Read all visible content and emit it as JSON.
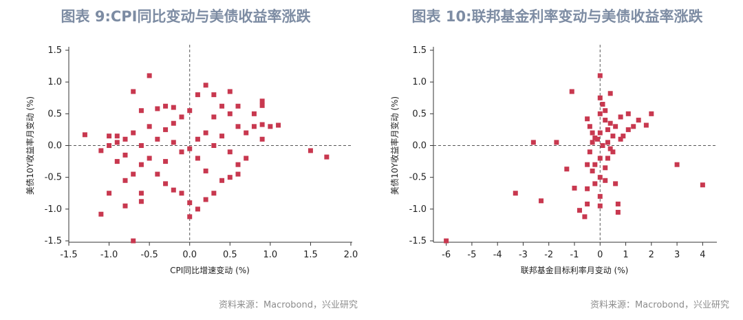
{
  "charts": [
    {
      "title": "图表 9:CPI同比变动与美债收益率涨跌",
      "source": "资料来源：Macrobond，兴业研究",
      "chart_data": {
        "type": "scatter",
        "title": "图表 9:CPI同比变动与美债收益率涨跌",
        "xlabel": "CPI同比增速变动 (%)",
        "ylabel": "美债10Y收益率月变动 (%)",
        "xlim": [
          -1.5,
          2.0
        ],
        "ylim": [
          -1.5,
          1.5
        ],
        "x_ticks": [
          "-1.5",
          "-1.0",
          "-0.5",
          "0.0",
          "0.5",
          "1.0",
          "1.5",
          "2.0"
        ],
        "y_ticks": [
          "1.5",
          "1.0",
          "0.5",
          "0.0",
          "-0.5",
          "-1.0",
          "-1.5"
        ],
        "reference_lines": {
          "x": 0,
          "y": 0
        },
        "marker_color": "#c8384f",
        "grid": false,
        "points": [
          [
            -1.3,
            0.17
          ],
          [
            -1.1,
            -0.08
          ],
          [
            -1.0,
            -0.75
          ],
          [
            -1.1,
            -1.08
          ],
          [
            -0.8,
            -0.95
          ],
          [
            -0.7,
            -1.5
          ],
          [
            -0.7,
            0.85
          ],
          [
            -0.5,
            1.1
          ],
          [
            -0.6,
            0.55
          ],
          [
            -0.4,
            0.58
          ],
          [
            -0.3,
            0.62
          ],
          [
            -0.2,
            0.6
          ],
          [
            -0.1,
            0.45
          ],
          [
            0.1,
            0.8
          ],
          [
            0.2,
            0.95
          ],
          [
            0.3,
            0.8
          ],
          [
            0.4,
            0.62
          ],
          [
            0.5,
            0.85
          ],
          [
            0.6,
            0.62
          ],
          [
            0.8,
            0.5
          ],
          [
            0.9,
            0.7
          ],
          [
            0.9,
            0.63
          ],
          [
            1.0,
            0.3
          ],
          [
            1.1,
            0.32
          ],
          [
            0.9,
            0.33
          ],
          [
            0.8,
            0.3
          ],
          [
            0.9,
            0.1
          ],
          [
            0.7,
            0.2
          ],
          [
            1.5,
            -0.08
          ],
          [
            1.7,
            -0.18
          ],
          [
            -0.9,
            0.15
          ],
          [
            -0.9,
            0.05
          ],
          [
            -0.8,
            0.1
          ],
          [
            -0.8,
            -0.15
          ],
          [
            -0.7,
            0.2
          ],
          [
            -0.6,
            0.0
          ],
          [
            -0.6,
            -0.3
          ],
          [
            -0.5,
            -0.2
          ],
          [
            -0.4,
            -0.45
          ],
          [
            -0.3,
            -0.6
          ],
          [
            -0.6,
            -0.75
          ],
          [
            -0.6,
            -0.88
          ],
          [
            -0.2,
            -0.7
          ],
          [
            -0.1,
            -0.75
          ],
          [
            0.0,
            -0.9
          ],
          [
            0.0,
            -1.12
          ],
          [
            0.1,
            -1.0
          ],
          [
            0.2,
            -0.85
          ],
          [
            0.3,
            -0.75
          ],
          [
            0.5,
            -0.5
          ],
          [
            0.6,
            -0.45
          ],
          [
            0.7,
            -0.2
          ],
          [
            0.6,
            -0.3
          ],
          [
            0.4,
            -0.55
          ],
          [
            -1.0,
            0.0
          ],
          [
            -0.9,
            -0.25
          ],
          [
            -1.0,
            0.15
          ],
          [
            -0.7,
            -0.45
          ],
          [
            -0.8,
            -0.55
          ],
          [
            -0.5,
            0.3
          ],
          [
            -0.3,
            0.25
          ],
          [
            -0.2,
            0.35
          ],
          [
            0.3,
            0.45
          ],
          [
            0.5,
            0.5
          ],
          [
            0.6,
            0.3
          ],
          [
            0.0,
            0.55
          ],
          [
            0.2,
            -0.4
          ],
          [
            0.1,
            -0.2
          ],
          [
            -0.1,
            -0.1
          ],
          [
            0.0,
            -0.05
          ],
          [
            -0.2,
            0.05
          ],
          [
            0.1,
            0.1
          ],
          [
            0.3,
            0.0
          ],
          [
            0.4,
            0.15
          ],
          [
            -0.4,
            0.1
          ],
          [
            -0.3,
            -0.25
          ],
          [
            0.5,
            -0.1
          ],
          [
            0.2,
            0.2
          ]
        ]
      }
    },
    {
      "title": "图表 10:联邦基金利率变动与美债收益率涨跌",
      "source": "资料来源：Macrobond，兴业研究",
      "chart_data": {
        "type": "scatter",
        "title": "图表 10:联邦基金利率变动与美债收益率涨跌",
        "xlabel": "联邦基金目标利率月变动 (%)",
        "ylabel": "美债10Y收益率月变动 (%)",
        "xlim": [
          -6.5,
          4.5
        ],
        "ylim": [
          -1.5,
          1.5
        ],
        "x_ticks": [
          "-6",
          "-5",
          "-4",
          "-3",
          "-2",
          "-1",
          "0",
          "1",
          "2",
          "3",
          "4"
        ],
        "y_ticks": [
          "1.5",
          "1.0",
          "0.5",
          "0.0",
          "-0.5",
          "-1.0",
          "-1.5"
        ],
        "reference_lines": {
          "x": 0,
          "y": 0
        },
        "marker_color": "#c8384f",
        "grid": false,
        "points": [
          [
            -6.0,
            -1.5
          ],
          [
            -3.3,
            -0.75
          ],
          [
            -2.3,
            -0.87
          ],
          [
            -2.6,
            0.05
          ],
          [
            -1.7,
            0.05
          ],
          [
            -1.3,
            -0.37
          ],
          [
            -1.1,
            0.85
          ],
          [
            -1.0,
            -0.67
          ],
          [
            -0.8,
            -1.02
          ],
          [
            -0.6,
            -1.12
          ],
          [
            -0.5,
            -0.92
          ],
          [
            -0.5,
            -0.68
          ],
          [
            -0.5,
            0.42
          ],
          [
            -0.4,
            0.3
          ],
          [
            -0.3,
            0.2
          ],
          [
            -0.2,
            0.12
          ],
          [
            -0.4,
            -0.1
          ],
          [
            -0.5,
            -0.3
          ],
          [
            -0.3,
            -0.4
          ],
          [
            -0.2,
            -0.6
          ],
          [
            0.0,
            1.1
          ],
          [
            0.0,
            0.75
          ],
          [
            0.0,
            0.5
          ],
          [
            0.0,
            0.2
          ],
          [
            0.0,
            -0.2
          ],
          [
            0.0,
            -0.5
          ],
          [
            0.0,
            -0.8
          ],
          [
            0.0,
            -0.95
          ],
          [
            0.1,
            0.65
          ],
          [
            0.2,
            0.4
          ],
          [
            0.3,
            0.25
          ],
          [
            0.4,
            0.35
          ],
          [
            0.6,
            0.3
          ],
          [
            0.5,
            0.15
          ],
          [
            0.8,
            0.45
          ],
          [
            1.1,
            0.5
          ],
          [
            1.5,
            0.4
          ],
          [
            1.3,
            0.3
          ],
          [
            1.1,
            0.25
          ],
          [
            1.8,
            0.32
          ],
          [
            2.0,
            0.5
          ],
          [
            0.8,
            0.1
          ],
          [
            0.5,
            -0.1
          ],
          [
            0.3,
            -0.2
          ],
          [
            0.2,
            -0.35
          ],
          [
            0.6,
            -0.6
          ],
          [
            0.7,
            -0.92
          ],
          [
            0.7,
            -1.05
          ],
          [
            0.4,
            0.82
          ],
          [
            0.2,
            0.55
          ],
          [
            -0.1,
            0.1
          ],
          [
            0.1,
            0.0
          ],
          [
            -0.3,
            0.05
          ],
          [
            0.3,
            0.05
          ],
          [
            3.0,
            -0.3
          ],
          [
            4.0,
            -0.62
          ],
          [
            0.9,
            0.15
          ],
          [
            0.4,
            -0.05
          ],
          [
            0.2,
            -0.55
          ],
          [
            -0.2,
            -0.3
          ]
        ]
      }
    }
  ]
}
